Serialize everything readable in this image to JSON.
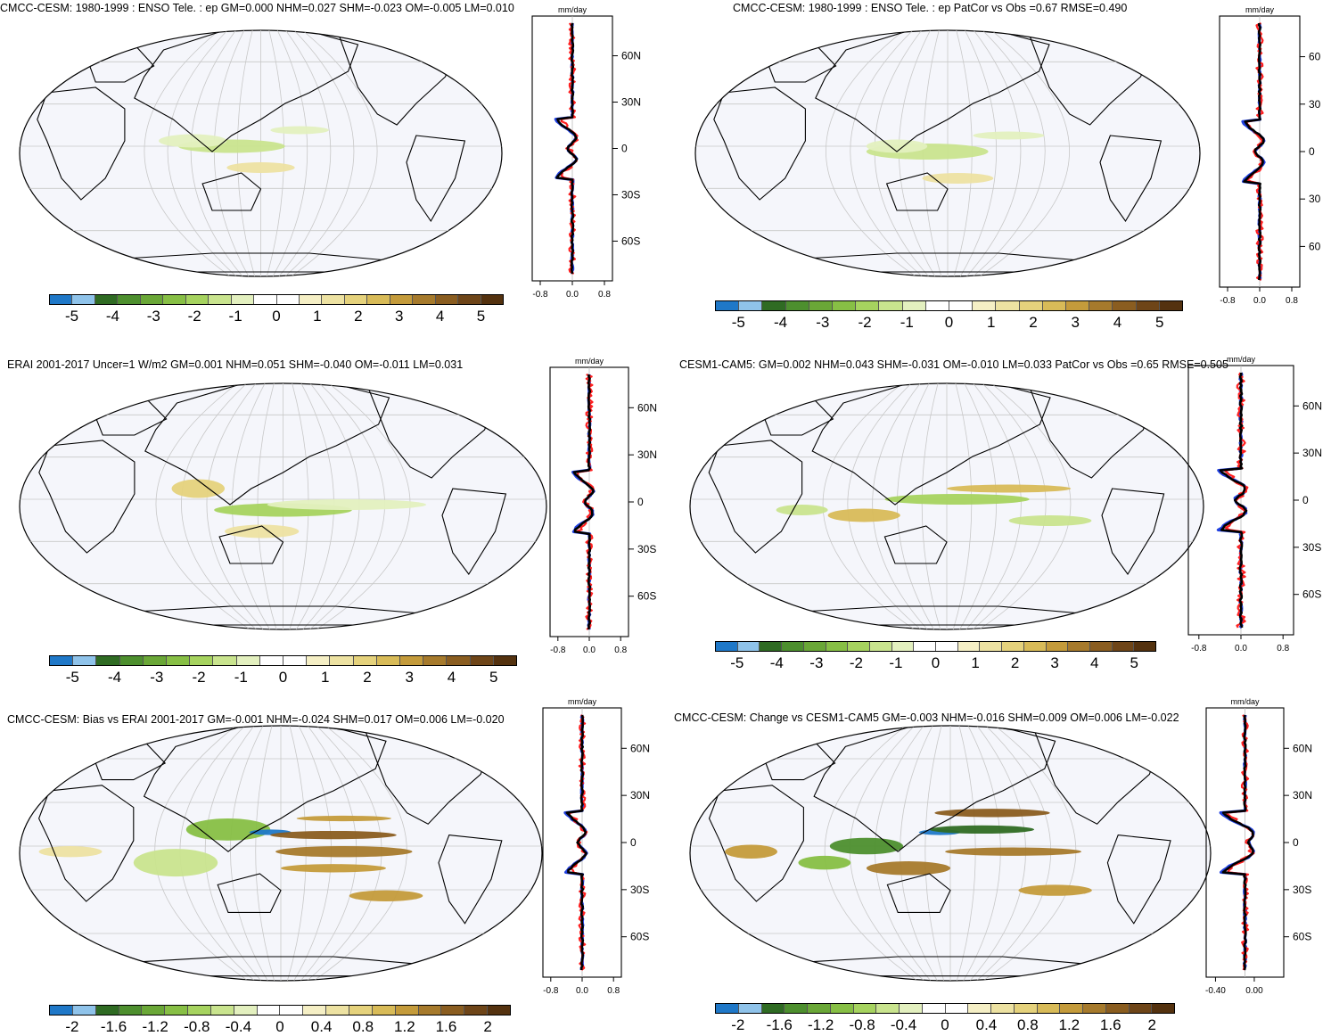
{
  "colors": {
    "bar_a": [
      "#1f78c8",
      "#8fc3ea",
      "#2f6b23",
      "#4d8f2e",
      "#6aa737",
      "#87bf45",
      "#a6d35f",
      "#c9e48e",
      "#e3f0bf",
      "#ffffff",
      "#ffffff",
      "#f5efc5",
      "#ede2a2",
      "#e5d27c",
      "#d8bb58",
      "#c49b3b",
      "#a67a2c",
      "#8a5d20",
      "#6e4518",
      "#54320f"
    ],
    "bar_b": [
      "#1f78c8",
      "#8fc3ea",
      "#2f6b23",
      "#4d8f2e",
      "#6aa737",
      "#87bf45",
      "#a6d35f",
      "#c9e48e",
      "#e3f0bf",
      "#ffffff",
      "#ffffff",
      "#f5efc5",
      "#ede2a2",
      "#e5d27c",
      "#d8bb58",
      "#c49b3b",
      "#a67a2c",
      "#8a5d20",
      "#6e4518",
      "#54320f"
    ],
    "ocean": "#f5f6fb",
    "profile_obs": "#ff2020",
    "profile_model": "#2040e0",
    "profile_mean": "#000000"
  },
  "panels": [
    {
      "title": "CMCC-CESM: 1980-1999 : ENSO Tele. : ep GM=0.000 NHM=0.027 SHM=-0.023 OM=-0.005 LM=0.010",
      "unit": "mm/day",
      "lat_ticks": [
        "60N",
        "30N",
        "0",
        "30S",
        "60S"
      ],
      "x_ticks": [
        "-0.8",
        "0.0",
        "0.8"
      ],
      "cbar_labels": [
        "-5",
        "-4",
        "-3",
        "-2",
        "-1",
        "0",
        "1",
        "2",
        "3",
        "4",
        "5"
      ]
    },
    {
      "title": "CMCC-CESM: 1980-1999 : ENSO Tele. : ep PatCor vs Obs =0.67 RMSE=0.490",
      "unit": "mm/day",
      "lat_ticks": [
        "60",
        "30",
        "0",
        "30",
        "60"
      ],
      "x_ticks": [
        "-0.8",
        "0.0",
        "0.8"
      ],
      "cbar_labels": [
        "-5",
        "-4",
        "-3",
        "-2",
        "-1",
        "0",
        "1",
        "2",
        "3",
        "4",
        "5"
      ]
    },
    {
      "title": "ERAI 2001-2017 Uncer=1 W/m2 GM=0.001 NHM=0.051 SHM=-0.040 OM=-0.011 LM=0.031",
      "unit": "mm/day",
      "lat_ticks": [
        "60N",
        "30N",
        "0",
        "30S",
        "60S"
      ],
      "x_ticks": [
        "-0.8",
        "0.0",
        "0.8"
      ],
      "cbar_labels": [
        "-5",
        "-4",
        "-3",
        "-2",
        "-1",
        "0",
        "1",
        "2",
        "3",
        "4",
        "5"
      ]
    },
    {
      "title": "CESM1-CAM5: GM=0.002 NHM=0.043 SHM=-0.031 OM=-0.010 LM=0.033 PatCor vs Obs =0.65 RMSE=0.505",
      "unit": "mm/day",
      "lat_ticks": [
        "60N",
        "30N",
        "0",
        "30S",
        "60S"
      ],
      "x_ticks": [
        "-0.8",
        "0.0",
        "0.8"
      ],
      "cbar_labels": [
        "-5",
        "-4",
        "-3",
        "-2",
        "-1",
        "0",
        "1",
        "2",
        "3",
        "4",
        "5"
      ]
    },
    {
      "title": "CMCC-CESM: Bias vs ERAI 2001-2017 GM=-0.001 NHM=-0.024 SHM=0.017 OM=0.006 LM=-0.020",
      "unit": "mm/day",
      "lat_ticks": [
        "60N",
        "30N",
        "0",
        "30S",
        "60S"
      ],
      "x_ticks": [
        "-0.8",
        "0.0",
        "0.8"
      ],
      "cbar_labels": [
        "-2",
        "-1.6",
        "-1.2",
        "-0.8",
        "-0.4",
        "0",
        "0.4",
        "0.8",
        "1.2",
        "1.6",
        "2"
      ]
    },
    {
      "title": "CMCC-CESM: Change vs CESM1-CAM5 GM=-0.003 NHM=-0.016 SHM=0.009 OM=0.006 LM=-0.022",
      "unit": "mm/day",
      "lat_ticks": [
        "60N",
        "30N",
        "0",
        "30S",
        "60S"
      ],
      "x_ticks": [
        "-0.40",
        "0.00"
      ],
      "cbar_labels": [
        "-2",
        "-1.6",
        "-1.2",
        "-0.8",
        "-0.4",
        "0",
        "0.4",
        "0.8",
        "1.2",
        "1.6",
        "2"
      ]
    }
  ]
}
